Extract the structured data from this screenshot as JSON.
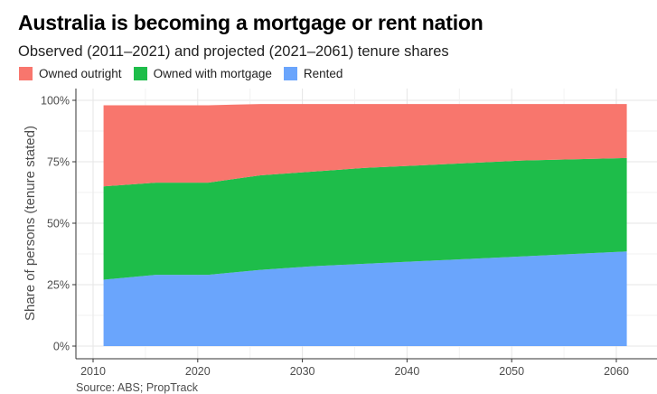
{
  "title": "Australia is becoming a mortgage or rent nation",
  "subtitle": "Observed (2011–2021) and projected (2021–2061) tenure shares",
  "source": "Source: ABS; PropTrack",
  "colors": {
    "owned_outright": "#F8766D",
    "owned_with_mortgage": "#1EBD4A",
    "rented": "#6AA5FC",
    "grid": "#e6e6e6",
    "axis": "#333333"
  },
  "legend": [
    {
      "label": "Owned outright",
      "color": "#F8766D"
    },
    {
      "label": "Owned with mortgage",
      "color": "#1EBD4A"
    },
    {
      "label": "Rented",
      "color": "#6AA5FC"
    }
  ],
  "chart_data": {
    "type": "area",
    "stacked": true,
    "title": "Australia is becoming a mortgage or rent nation",
    "subtitle": "Observed (2011–2021) and projected (2021–2061) tenure shares",
    "xlabel": "",
    "ylabel": "Share of persons (tenure stated)",
    "x": [
      2011,
      2016,
      2021,
      2026,
      2031,
      2036,
      2041,
      2046,
      2051,
      2056,
      2061
    ],
    "xticks": [
      2010,
      2020,
      2030,
      2040,
      2050,
      2060
    ],
    "yticks": [
      "0%",
      "25%",
      "50%",
      "75%",
      "100%"
    ],
    "ylim": [
      0,
      1
    ],
    "xlim": [
      2009,
      2063
    ],
    "grid": true,
    "legend_position": "top-left",
    "series": [
      {
        "name": "Rented",
        "values": [
          0.27,
          0.29,
          0.29,
          0.31,
          0.325,
          0.335,
          0.345,
          0.355,
          0.365,
          0.375,
          0.385
        ]
      },
      {
        "name": "Owned with mortgage",
        "values": [
          0.38,
          0.375,
          0.375,
          0.385,
          0.385,
          0.39,
          0.39,
          0.39,
          0.39,
          0.385,
          0.38
        ]
      },
      {
        "name": "Owned outright",
        "values": [
          0.33,
          0.315,
          0.315,
          0.29,
          0.275,
          0.26,
          0.25,
          0.24,
          0.23,
          0.225,
          0.22
        ]
      }
    ]
  }
}
